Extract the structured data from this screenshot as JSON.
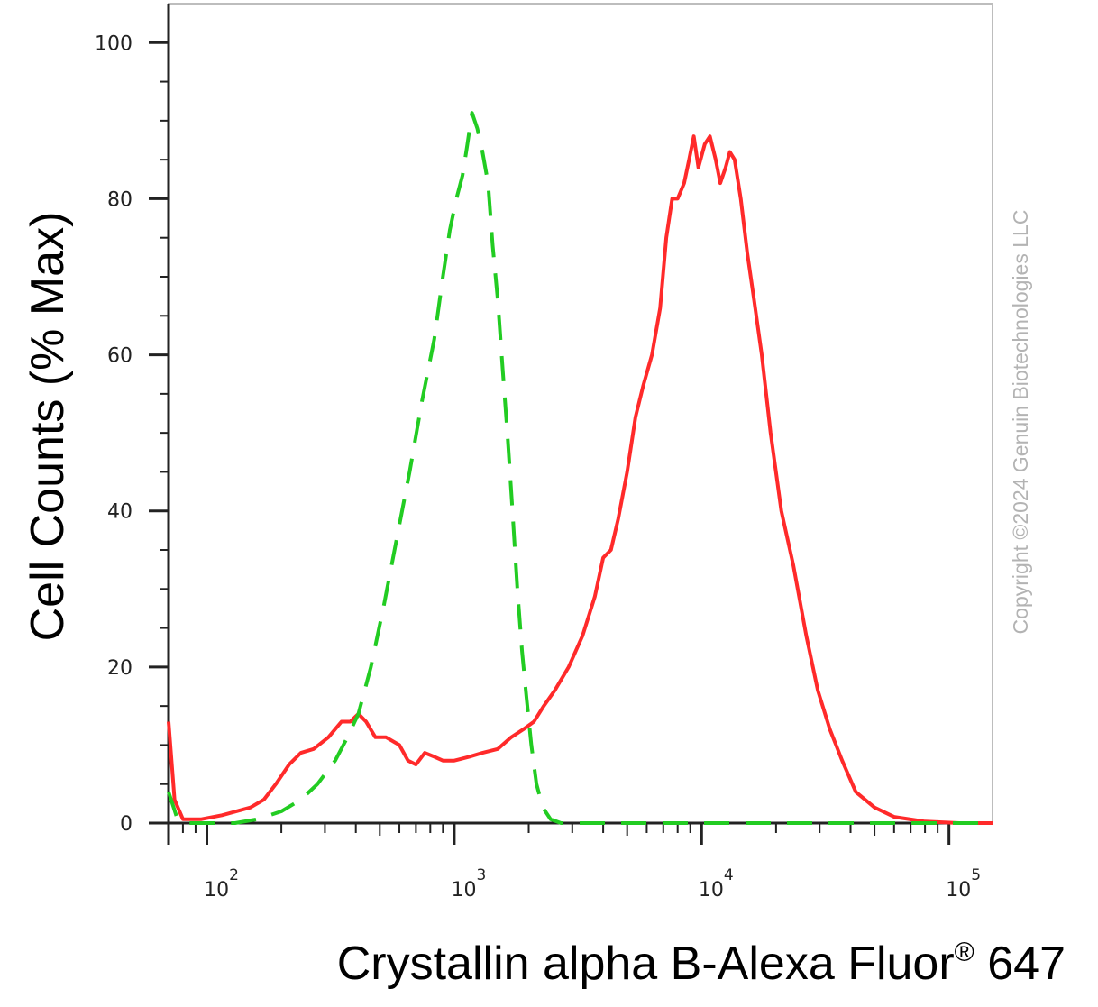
{
  "watermark": "Copyright ©2024 Genuin Biotechnologies LLC",
  "chart_data": {
    "type": "line",
    "xlabel": "Crystallin alpha B-Alexa Fluor",
    "xlabel_superscript": "®",
    "xlabel_suffix": " 647",
    "ylabel": "Cell Counts (% Max)",
    "x_scale": "log",
    "xlim": [
      70,
      150000
    ],
    "ylim": [
      0,
      105
    ],
    "y_ticks": [
      0,
      20,
      40,
      60,
      80,
      100
    ],
    "y_tick_labels": [
      "0",
      "20",
      "40",
      "60",
      "80",
      "100"
    ],
    "x_ticks": [
      100,
      1000,
      10000,
      100000
    ],
    "x_tick_labels": [
      {
        "base": "10",
        "exp": "2"
      },
      {
        "base": "10",
        "exp": "3"
      },
      {
        "base": "10",
        "exp": "4"
      },
      {
        "base": "10",
        "exp": "5"
      }
    ],
    "grid": false,
    "legend": "none",
    "series": [
      {
        "color": "#ff2a2a",
        "style": "solid",
        "points": [
          [
            70,
            13
          ],
          [
            74,
            3
          ],
          [
            80,
            0.5
          ],
          [
            95,
            0.5
          ],
          [
            115,
            1
          ],
          [
            150,
            2
          ],
          [
            170,
            3
          ],
          [
            190,
            5
          ],
          [
            215,
            7.5
          ],
          [
            240,
            9
          ],
          [
            270,
            9.5
          ],
          [
            310,
            11
          ],
          [
            350,
            13
          ],
          [
            380,
            13
          ],
          [
            410,
            14
          ],
          [
            440,
            13
          ],
          [
            480,
            11
          ],
          [
            530,
            11
          ],
          [
            600,
            10
          ],
          [
            650,
            8
          ],
          [
            700,
            7.5
          ],
          [
            760,
            9
          ],
          [
            830,
            8.5
          ],
          [
            900,
            8
          ],
          [
            1000,
            8
          ],
          [
            1150,
            8.5
          ],
          [
            1300,
            9
          ],
          [
            1500,
            9.5
          ],
          [
            1700,
            11
          ],
          [
            1900,
            12
          ],
          [
            2100,
            13
          ],
          [
            2300,
            15
          ],
          [
            2550,
            17
          ],
          [
            2900,
            20
          ],
          [
            3300,
            24
          ],
          [
            3700,
            29
          ],
          [
            4000,
            34
          ],
          [
            4300,
            35
          ],
          [
            4600,
            39
          ],
          [
            5000,
            45
          ],
          [
            5400,
            52
          ],
          [
            5800,
            56
          ],
          [
            6300,
            60
          ],
          [
            6800,
            66
          ],
          [
            7200,
            75
          ],
          [
            7600,
            80
          ],
          [
            8000,
            80
          ],
          [
            8500,
            82
          ],
          [
            8900,
            85
          ],
          [
            9300,
            88
          ],
          [
            9700,
            84
          ],
          [
            10300,
            87
          ],
          [
            10800,
            88
          ],
          [
            11400,
            85
          ],
          [
            11900,
            82
          ],
          [
            12500,
            84
          ],
          [
            13000,
            86
          ],
          [
            13600,
            85
          ],
          [
            14400,
            80
          ],
          [
            15300,
            73
          ],
          [
            16300,
            67
          ],
          [
            17500,
            60
          ],
          [
            19000,
            50
          ],
          [
            21000,
            40
          ],
          [
            23500,
            33
          ],
          [
            26500,
            24
          ],
          [
            29500,
            17
          ],
          [
            33000,
            12
          ],
          [
            37000,
            8
          ],
          [
            42000,
            4
          ],
          [
            50000,
            2
          ],
          [
            60000,
            0.8
          ],
          [
            80000,
            0.2
          ],
          [
            110000,
            0
          ],
          [
            150000,
            0
          ]
        ]
      },
      {
        "color": "#22cc22",
        "style": "dashed",
        "points": [
          [
            70,
            4
          ],
          [
            76,
            0.5
          ],
          [
            85,
            0
          ],
          [
            130,
            0
          ],
          [
            160,
            0.5
          ],
          [
            200,
            1.5
          ],
          [
            240,
            3
          ],
          [
            280,
            5
          ],
          [
            330,
            8
          ],
          [
            370,
            11
          ],
          [
            410,
            14
          ],
          [
            460,
            20
          ],
          [
            520,
            28
          ],
          [
            590,
            37
          ],
          [
            660,
            45
          ],
          [
            740,
            54
          ],
          [
            830,
            62
          ],
          [
            900,
            70
          ],
          [
            960,
            76
          ],
          [
            1020,
            80
          ],
          [
            1080,
            83
          ],
          [
            1130,
            87
          ],
          [
            1180,
            91
          ],
          [
            1240,
            89
          ],
          [
            1300,
            86
          ],
          [
            1370,
            82
          ],
          [
            1430,
            74
          ],
          [
            1500,
            67
          ],
          [
            1570,
            58
          ],
          [
            1640,
            50
          ],
          [
            1720,
            40
          ],
          [
            1800,
            30
          ],
          [
            1880,
            22
          ],
          [
            1960,
            16
          ],
          [
            2050,
            10
          ],
          [
            2150,
            5
          ],
          [
            2280,
            2
          ],
          [
            2450,
            0.5
          ],
          [
            2700,
            0
          ],
          [
            150000,
            0
          ]
        ]
      }
    ]
  }
}
